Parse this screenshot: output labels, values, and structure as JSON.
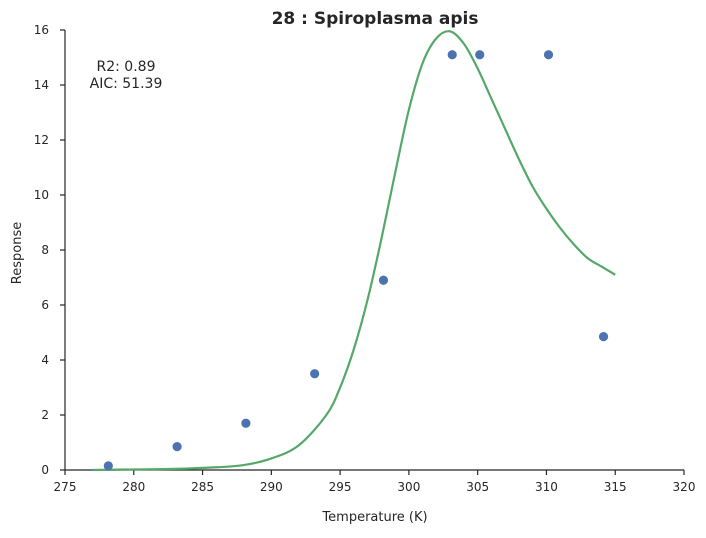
{
  "chart_data": {
    "type": "scatter",
    "title": "28 : Spiroplasma apis",
    "xlabel": "Temperature (K)",
    "ylabel": "Response",
    "xlim": [
      275,
      320
    ],
    "ylim": [
      0,
      16
    ],
    "x_ticks": [
      "275",
      "280",
      "285",
      "290",
      "295",
      "300",
      "305",
      "310",
      "315",
      "320"
    ],
    "y_ticks": [
      "0",
      "2",
      "4",
      "6",
      "8",
      "10",
      "12",
      "14",
      "16"
    ],
    "grid": false,
    "legend": "none",
    "annotations": [
      "R2: 0.89",
      "AIC: 51.39"
    ],
    "colors": {
      "points": "#4c72b0",
      "fit": "#55a868",
      "axes": "#262626"
    },
    "series": [
      {
        "kind": "points",
        "x": [
          278.15,
          283.15,
          288.15,
          293.15,
          298.15,
          303.15,
          305.15,
          310.15,
          314.15
        ],
        "y": [
          0.15,
          0.85,
          1.7,
          3.5,
          6.9,
          15.1,
          15.1,
          15.1,
          4.85
        ]
      },
      {
        "kind": "fit-line",
        "x": [
          277,
          280,
          283,
          286,
          288,
          290,
          292,
          294,
          295,
          296,
          297,
          298,
          299,
          300,
          301,
          302,
          303,
          304,
          305,
          306,
          307,
          308,
          309,
          310,
          311,
          312,
          313,
          314,
          315
        ],
        "y": [
          0,
          0.02,
          0.04,
          0.1,
          0.18,
          0.42,
          0.9,
          2.0,
          3.0,
          4.4,
          6.2,
          8.4,
          10.8,
          13.1,
          14.8,
          15.7,
          15.95,
          15.5,
          14.6,
          13.5,
          12.4,
          11.3,
          10.3,
          9.5,
          8.8,
          8.2,
          7.7,
          7.4,
          7.1
        ]
      }
    ]
  }
}
